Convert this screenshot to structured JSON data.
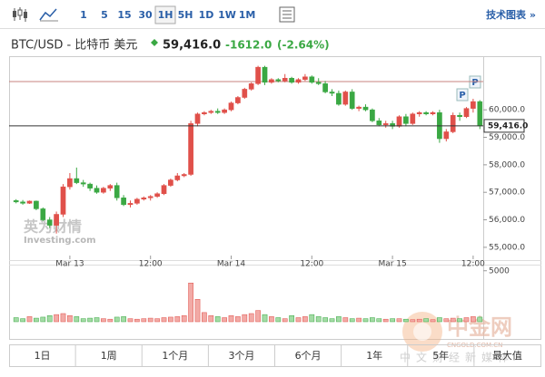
{
  "toolbar": {
    "intervals": [
      "1",
      "5",
      "15",
      "30",
      "1H",
      "5H",
      "1D",
      "1W",
      "1M"
    ],
    "selected": 4,
    "right_link": "技术图表 »"
  },
  "header": {
    "symbol": "BTC/USD - 比特币 美元",
    "price": "59,416.0",
    "change": "-1612.0",
    "change_pct": "(-2.64%)"
  },
  "ranges": [
    "1日",
    "1周",
    "1个月",
    "3个月",
    "6个月",
    "1年",
    "5年",
    "最大值"
  ],
  "watermarks": {
    "investing_cn": "英为财情",
    "investing": "Investing.com",
    "cngold": "中金网",
    "cngold_url": "CNGOLD.COM.CN",
    "cngold_sub": "中文财经新媒体"
  },
  "markers": [
    "P",
    "P"
  ],
  "chart_data": {
    "type": "candlestick",
    "categories": [
      null,
      null,
      null,
      null,
      null,
      null,
      null,
      null,
      "Mar 13",
      null,
      null,
      null,
      null,
      null,
      null,
      null,
      null,
      null,
      null,
      null,
      "12:00",
      null,
      null,
      null,
      null,
      null,
      null,
      null,
      null,
      null,
      null,
      null,
      "Mar 14",
      null,
      null,
      null,
      null,
      null,
      null,
      null,
      null,
      null,
      null,
      null,
      "12:00",
      null,
      null,
      null,
      null,
      null,
      null,
      null,
      null,
      null,
      null,
      null,
      "Mar 15",
      null,
      null,
      null,
      null,
      null,
      null,
      null,
      null,
      null,
      null,
      null,
      "12:00",
      null
    ],
    "open": [
      56700,
      56650,
      56600,
      56680,
      56400,
      56000,
      55800,
      56200,
      57200,
      57500,
      57350,
      57300,
      57150,
      57000,
      57150,
      57250,
      56800,
      56550,
      56600,
      56750,
      56800,
      56850,
      56950,
      57250,
      57450,
      57600,
      57650,
      59500,
      59850,
      59900,
      59950,
      59900,
      60000,
      60250,
      60450,
      60750,
      60950,
      61550,
      61000,
      61100,
      61050,
      61150,
      61000,
      61100,
      61200,
      61000,
      60950,
      60650,
      60600,
      60200,
      60650,
      60050,
      60100,
      60000,
      59600,
      59450,
      59500,
      59400,
      59750,
      59500,
      59850,
      59900,
      59850,
      59900,
      58950,
      59200,
      59800,
      59750,
      60050,
      60300
    ],
    "high": [
      56750,
      56720,
      56700,
      56700,
      56450,
      56100,
      56300,
      57300,
      57700,
      57900,
      57450,
      57350,
      57250,
      57200,
      57300,
      57350,
      56900,
      56700,
      56800,
      56850,
      56900,
      57000,
      57300,
      57500,
      57700,
      57700,
      59600,
      59900,
      59950,
      60000,
      60050,
      60050,
      60300,
      60500,
      60800,
      61000,
      61600,
      61600,
      61150,
      61150,
      61300,
      61200,
      61150,
      61300,
      61250,
      61150,
      61050,
      60750,
      60700,
      60700,
      60750,
      60150,
      60200,
      60050,
      59700,
      59600,
      59600,
      59800,
      59850,
      59900,
      59950,
      59950,
      59950,
      60000,
      59300,
      59900,
      59900,
      60100,
      60400,
      60350
    ],
    "low": [
      56600,
      56550,
      56580,
      56350,
      55950,
      55700,
      55500,
      56100,
      57100,
      57300,
      57200,
      57050,
      56950,
      56950,
      57050,
      56700,
      56500,
      56450,
      56550,
      56700,
      56700,
      56800,
      56900,
      57200,
      57400,
      57550,
      57600,
      59400,
      59800,
      59850,
      59850,
      59850,
      59950,
      60200,
      60400,
      60700,
      60900,
      60900,
      60950,
      61000,
      61000,
      60950,
      60950,
      61050,
      60950,
      60900,
      60600,
      60500,
      60150,
      60150,
      60000,
      59950,
      59950,
      59550,
      59400,
      59350,
      59300,
      59350,
      59400,
      59450,
      59750,
      59800,
      59800,
      58800,
      58850,
      59150,
      59600,
      59700,
      59900,
      59300
    ],
    "close": [
      56650,
      56600,
      56680,
      56400,
      56000,
      55800,
      56200,
      57200,
      57500,
      57350,
      57300,
      57150,
      57000,
      57150,
      57250,
      56800,
      56550,
      56600,
      56750,
      56800,
      56850,
      56950,
      57250,
      57450,
      57600,
      57650,
      59500,
      59850,
      59900,
      59950,
      59900,
      60000,
      60250,
      60450,
      60750,
      60950,
      61550,
      61000,
      61100,
      61050,
      61150,
      61000,
      61100,
      61200,
      61000,
      60950,
      60650,
      60600,
      60200,
      60650,
      60050,
      60100,
      60000,
      59600,
      59450,
      59500,
      59400,
      59750,
      59500,
      59850,
      59900,
      59850,
      59900,
      58950,
      59200,
      59800,
      59750,
      60050,
      60300,
      59416
    ],
    "volume": [
      400,
      300,
      500,
      350,
      450,
      600,
      700,
      800,
      600,
      500,
      300,
      350,
      400,
      300,
      250,
      450,
      500,
      300,
      250,
      300,
      350,
      300,
      400,
      450,
      500,
      600,
      3800,
      2200,
      900,
      600,
      500,
      400,
      600,
      500,
      700,
      800,
      1100,
      700,
      500,
      400,
      300,
      600,
      400,
      500,
      700,
      500,
      400,
      300,
      500,
      400,
      300,
      350,
      300,
      400,
      300,
      250,
      300,
      300,
      250,
      200,
      250,
      300,
      200,
      400,
      300,
      350,
      300,
      400,
      500,
      450
    ],
    "ylim": [
      54700,
      61950
    ],
    "yticks": [
      {
        "value": 55000,
        "label": "55,000.0"
      },
      {
        "value": 56000,
        "label": "56,000.0"
      },
      {
        "value": 57000,
        "label": "57,000.0"
      },
      {
        "value": 58000,
        "label": "58,000.0"
      },
      {
        "value": 59000,
        "label": "59,000.0"
      },
      {
        "value": 60000,
        "label": "60,000.0"
      }
    ],
    "vlim": [
      0,
      5600
    ],
    "vticks": [
      5000
    ],
    "prev_close_line": 61028,
    "up_color": "#e0504a",
    "down_color": "#3aa843",
    "up_volume_color": "#f2aaa6",
    "down_volume_color": "#a3dba5"
  }
}
